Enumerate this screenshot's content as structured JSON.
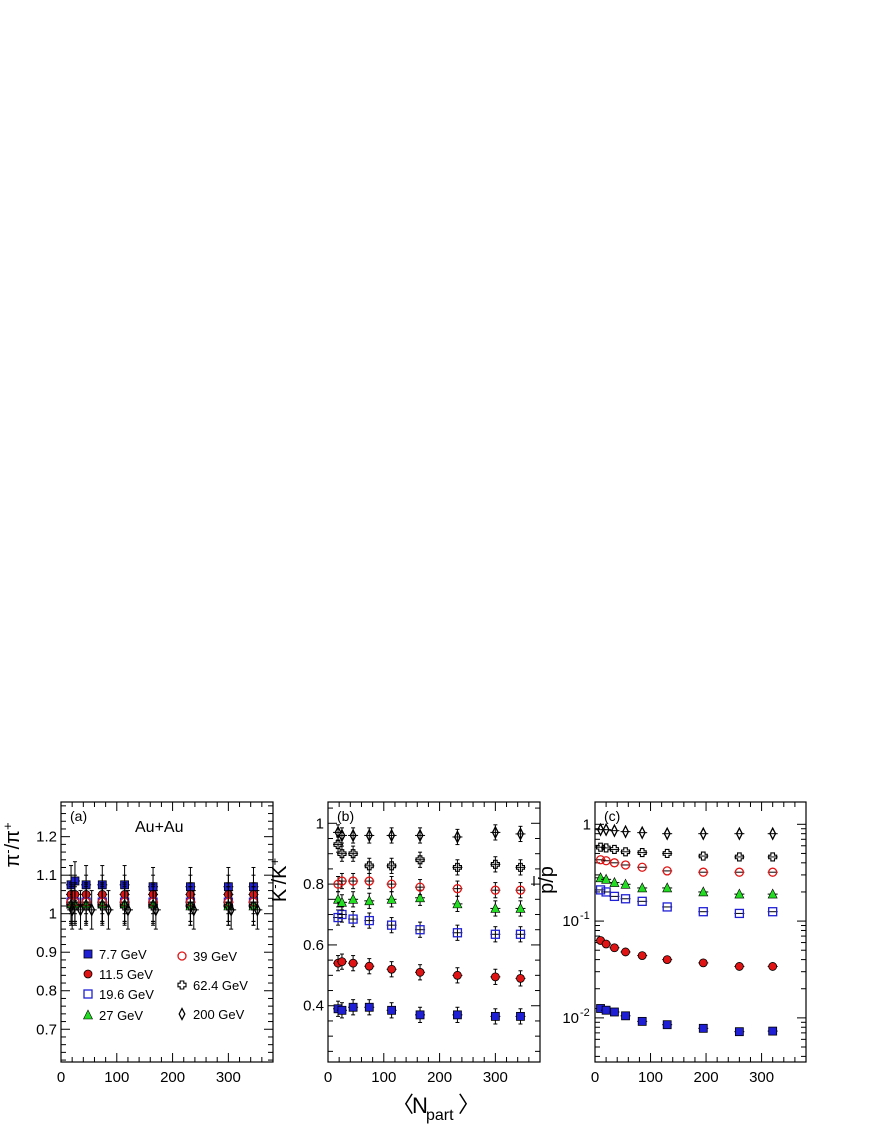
{
  "figure": {
    "xlabel_main": "N",
    "xlabel_sub": "part",
    "bracket_left": "〈",
    "bracket_right": "〉"
  },
  "legend": [
    {
      "label": "7.7   GeV",
      "marker": "square-filled",
      "color": "#1f1fd6"
    },
    {
      "label": "11.5 GeV",
      "marker": "circle-filled",
      "color": "#e01414"
    },
    {
      "label": "19.6 GeV",
      "marker": "square-open",
      "color": "#1f1fd6"
    },
    {
      "label": "27    GeV",
      "marker": "triangle-filled",
      "color": "#22dd22"
    },
    {
      "label": "39 GeV",
      "marker": "circle-open",
      "color": "#e01414"
    },
    {
      "label": "62.4 GeV",
      "marker": "cross-open",
      "color": "#000000"
    },
    {
      "label": "200 GeV",
      "marker": "diamond-open",
      "color": "#000000"
    }
  ],
  "chart_data": [
    {
      "type": "scatter",
      "panel_label": "(a)",
      "annotation": "Au+Au",
      "ylabel_main": "π",
      "ylabel_sup1": "-",
      "ylabel_mid": "/π",
      "ylabel_sup2": "+",
      "xlim": [
        0,
        380
      ],
      "ylim": [
        0.615,
        1.29
      ],
      "yscale": "linear",
      "xticks": [
        "0",
        "100",
        "200",
        "300"
      ],
      "yticks": [
        "0.7",
        "0.8",
        "0.9",
        "1",
        "1.1",
        "1.2"
      ],
      "series": [
        {
          "name": "7.7   GeV",
          "x": [
            18,
            25,
            45,
            74,
            114,
            165,
            232,
            300,
            345
          ],
          "y": [
            1.075,
            1.085,
            1.075,
            1.075,
            1.075,
            1.07,
            1.07,
            1.07,
            1.07
          ]
        },
        {
          "name": "11.5 GeV",
          "x": [
            18,
            25,
            45,
            74,
            114,
            165,
            232,
            300,
            345
          ],
          "y": [
            1.05,
            1.05,
            1.05,
            1.05,
            1.05,
            1.05,
            1.05,
            1.05,
            1.05
          ]
        },
        {
          "name": "19.6 GeV",
          "x": [
            18,
            25,
            45,
            74,
            114,
            165,
            232,
            300,
            345
          ],
          "y": [
            1.03,
            1.03,
            1.03,
            1.03,
            1.03,
            1.03,
            1.03,
            1.03,
            1.03
          ]
        },
        {
          "name": "27    GeV",
          "x": [
            18,
            25,
            45,
            74,
            114,
            165,
            232,
            300,
            345
          ],
          "y": [
            1.025,
            1.025,
            1.025,
            1.025,
            1.025,
            1.025,
            1.02,
            1.02,
            1.02
          ]
        },
        {
          "name": "39 GeV",
          "x": [
            18,
            25,
            45,
            74,
            114,
            165,
            232,
            300,
            345
          ],
          "y": [
            1.03,
            1.03,
            1.03,
            1.03,
            1.03,
            1.03,
            1.03,
            1.03,
            1.03
          ]
        },
        {
          "name": "62.4 GeV",
          "x": [
            18,
            25,
            45,
            74,
            114,
            165,
            232,
            300,
            345
          ],
          "y": [
            1.02,
            1.02,
            1.02,
            1.02,
            1.02,
            1.02,
            1.02,
            1.02,
            1.02
          ]
        },
        {
          "name": "200 GeV",
          "x": [
            20,
            35,
            55,
            85,
            120,
            170,
            238,
            305,
            352
          ],
          "y": [
            1.01,
            1.01,
            1.01,
            1.01,
            1.01,
            1.01,
            1.01,
            1.01,
            1.01
          ]
        }
      ],
      "yerr": 0.05
    },
    {
      "type": "scatter",
      "panel_label": "(b)",
      "ylabel_main": "K",
      "ylabel_sup1": "-",
      "ylabel_mid": "/K",
      "ylabel_sup2": "+",
      "xlim": [
        0,
        380
      ],
      "ylim": [
        0.215,
        1.07
      ],
      "yscale": "linear",
      "xticks": [
        "0",
        "100",
        "200",
        "300"
      ],
      "yticks": [
        "0.4",
        "0.6",
        "0.8",
        "1"
      ],
      "series": [
        {
          "name": "7.7   GeV",
          "x": [
            18,
            25,
            45,
            74,
            114,
            165,
            232,
            300,
            345
          ],
          "y": [
            0.39,
            0.385,
            0.395,
            0.395,
            0.385,
            0.37,
            0.37,
            0.365,
            0.365
          ]
        },
        {
          "name": "11.5 GeV",
          "x": [
            18,
            25,
            45,
            74,
            114,
            165,
            232,
            300,
            345
          ],
          "y": [
            0.54,
            0.545,
            0.54,
            0.53,
            0.52,
            0.51,
            0.5,
            0.495,
            0.49
          ]
        },
        {
          "name": "19.6 GeV",
          "x": [
            18,
            25,
            45,
            74,
            114,
            165,
            232,
            300,
            345
          ],
          "y": [
            0.69,
            0.7,
            0.685,
            0.68,
            0.665,
            0.65,
            0.64,
            0.635,
            0.635
          ]
        },
        {
          "name": "27    GeV",
          "x": [
            18,
            25,
            45,
            74,
            114,
            165,
            232,
            300,
            345
          ],
          "y": [
            0.75,
            0.74,
            0.75,
            0.745,
            0.75,
            0.755,
            0.735,
            0.72,
            0.72
          ]
        },
        {
          "name": "39 GeV",
          "x": [
            18,
            25,
            45,
            74,
            114,
            165,
            232,
            300,
            345
          ],
          "y": [
            0.8,
            0.81,
            0.81,
            0.81,
            0.8,
            0.79,
            0.785,
            0.78,
            0.78
          ]
        },
        {
          "name": "62.4 GeV",
          "x": [
            18,
            25,
            45,
            74,
            114,
            165,
            232,
            300,
            345
          ],
          "y": [
            0.93,
            0.9,
            0.9,
            0.86,
            0.86,
            0.88,
            0.855,
            0.865,
            0.855
          ]
        },
        {
          "name": "200 GeV",
          "x": [
            18,
            25,
            45,
            74,
            114,
            165,
            232,
            300,
            345
          ],
          "y": [
            0.97,
            0.96,
            0.96,
            0.96,
            0.96,
            0.96,
            0.955,
            0.97,
            0.965
          ]
        }
      ],
      "yerr": 0.025
    },
    {
      "type": "scatter",
      "panel_label": "(c)",
      "ylabel_main": "p/p",
      "ylabel_overline": "p",
      "xlim": [
        0,
        380
      ],
      "ylim": [
        0.0035,
        1.7
      ],
      "yscale": "log",
      "xticks": [
        "0",
        "100",
        "200",
        "300"
      ],
      "yticks": [
        {
          "value": 0.01,
          "base": "10",
          "exp": "-2"
        },
        {
          "value": 0.1,
          "base": "10",
          "exp": "-1"
        },
        {
          "value": 1,
          "base": "1",
          "exp": ""
        }
      ],
      "series": [
        {
          "name": "7.7   GeV",
          "x": [
            10,
            20,
            35,
            55,
            85,
            130,
            195,
            260,
            320
          ],
          "y": [
            0.0125,
            0.012,
            0.0115,
            0.0105,
            0.0092,
            0.0085,
            0.0078,
            0.0072,
            0.0073
          ]
        },
        {
          "name": "11.5 GeV",
          "x": [
            10,
            20,
            35,
            55,
            85,
            130,
            195,
            260,
            320
          ],
          "y": [
            0.063,
            0.058,
            0.053,
            0.048,
            0.044,
            0.04,
            0.037,
            0.034,
            0.034
          ]
        },
        {
          "name": "19.6 GeV",
          "x": [
            10,
            20,
            35,
            55,
            85,
            130,
            195,
            260,
            320
          ],
          "y": [
            0.21,
            0.2,
            0.18,
            0.17,
            0.16,
            0.14,
            0.125,
            0.12,
            0.125
          ]
        },
        {
          "name": "27    GeV",
          "x": [
            10,
            20,
            35,
            55,
            85,
            130,
            195,
            260,
            320
          ],
          "y": [
            0.28,
            0.27,
            0.25,
            0.24,
            0.22,
            0.22,
            0.2,
            0.19,
            0.19
          ]
        },
        {
          "name": "39 GeV",
          "x": [
            10,
            20,
            35,
            55,
            85,
            130,
            195,
            260,
            320
          ],
          "y": [
            0.43,
            0.42,
            0.4,
            0.38,
            0.36,
            0.33,
            0.32,
            0.32,
            0.32
          ]
        },
        {
          "name": "62.4 GeV",
          "x": [
            10,
            20,
            35,
            55,
            85,
            130,
            195,
            260,
            320
          ],
          "y": [
            0.58,
            0.57,
            0.55,
            0.52,
            0.51,
            0.5,
            0.47,
            0.46,
            0.46
          ]
        },
        {
          "name": "200 GeV",
          "x": [
            10,
            20,
            35,
            55,
            85,
            130,
            195,
            260,
            320
          ],
          "y": [
            0.88,
            0.88,
            0.86,
            0.84,
            0.82,
            0.8,
            0.8,
            0.8,
            0.8
          ]
        }
      ],
      "yerr": 0
    }
  ]
}
